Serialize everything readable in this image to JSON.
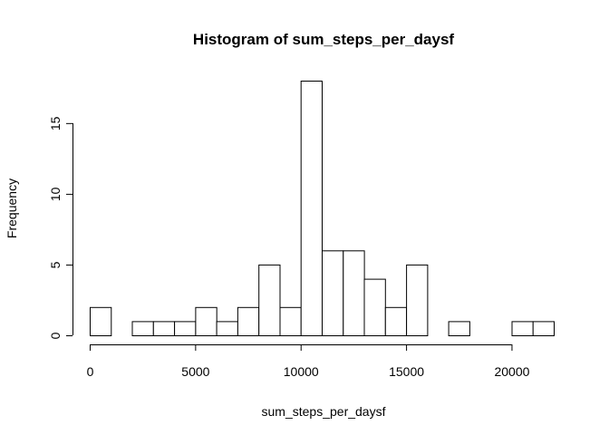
{
  "chart_data": {
    "type": "bar",
    "title": "Histogram of sum_steps_per_daysf",
    "xlabel": "sum_steps_per_daysf",
    "ylabel": "Frequency",
    "bin_edges": [
      0,
      1000,
      2000,
      3000,
      4000,
      5000,
      6000,
      7000,
      8000,
      9000,
      10000,
      11000,
      12000,
      13000,
      14000,
      15000,
      16000,
      17000,
      18000,
      19000,
      20000,
      21000,
      22000
    ],
    "values": [
      2,
      0,
      1,
      1,
      1,
      2,
      1,
      2,
      5,
      2,
      18,
      6,
      6,
      4,
      2,
      5,
      0,
      1,
      0,
      0,
      1,
      1
    ],
    "xlim": [
      0,
      22000
    ],
    "ylim": [
      0,
      18
    ],
    "x_ticks": [
      0,
      5000,
      10000,
      15000,
      20000
    ],
    "x_tick_labels": [
      "0",
      "5000",
      "10000",
      "15000",
      "20000"
    ],
    "y_ticks": [
      0,
      5,
      10,
      15
    ],
    "y_tick_labels": [
      "0",
      "5",
      "10",
      "15"
    ],
    "grid": false,
    "legend": "none"
  }
}
